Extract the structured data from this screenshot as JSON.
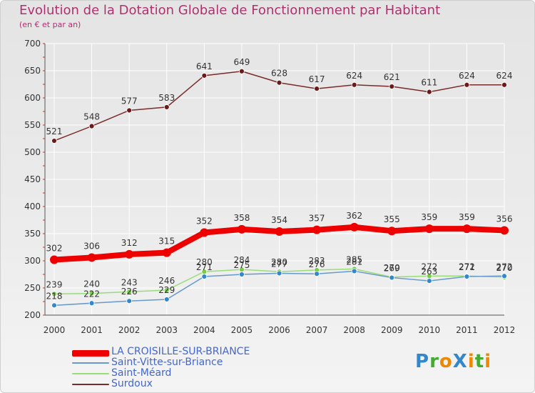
{
  "chart_data": {
    "type": "line",
    "title": "Evolution de la Dotation Globale de Fonctionnement par Habitant",
    "subtitle": "(en € et par an)",
    "x": [
      "2000",
      "2001",
      "2002",
      "2003",
      "2004",
      "2005",
      "2006",
      "2007",
      "2008",
      "2009",
      "2010",
      "2011",
      "2012"
    ],
    "ylim": [
      200,
      700
    ],
    "yticks": [
      200,
      250,
      300,
      350,
      400,
      450,
      500,
      550,
      600,
      650,
      700
    ],
    "grid": true,
    "legend_position": "bottom-left",
    "series": [
      {
        "name": "Surdoux",
        "color": "#7a2b2b",
        "marker": "#6b1a1a",
        "values": [
          521,
          548,
          577,
          583,
          641,
          649,
          628,
          617,
          624,
          621,
          611,
          624,
          624
        ]
      },
      {
        "name": "Saint-Méard",
        "color": "#99dd77",
        "marker": "#77cc44",
        "values": [
          239,
          240,
          243,
          246,
          280,
          284,
          280,
          283,
          285,
          270,
          272,
          272,
          270
        ]
      },
      {
        "name": "Saint-Vitte-sur-Briance",
        "color": "#6699cc",
        "marker": "#3388cc",
        "values": [
          218,
          222,
          226,
          229,
          271,
          275,
          277,
          276,
          281,
          269,
          263,
          271,
          272
        ]
      },
      {
        "name": "LA CROISILLE-SUR-BRIANCE",
        "color": "#ee0000",
        "marker": "#ee0000",
        "values": [
          302,
          306,
          312,
          315,
          352,
          358,
          354,
          357,
          362,
          355,
          359,
          359,
          356
        ]
      }
    ]
  },
  "legend": [
    {
      "label": "LA CROISILLE-SUR-BRIANCE",
      "color": "#ee0000"
    },
    {
      "label": "Saint-Vitte-sur-Briance",
      "color": "#6699cc"
    },
    {
      "label": "Saint-Méard",
      "color": "#99dd77"
    },
    {
      "label": "Surdoux",
      "color": "#7a2b2b"
    }
  ],
  "logo": {
    "text": "ProXiti",
    "letters": [
      "P",
      "r",
      "o",
      "X",
      "i",
      "t",
      "i"
    ],
    "colors": [
      "#3388cc",
      "#44aa33",
      "#ee8800",
      "#3388cc",
      "#ee8800",
      "#44aa33",
      "#ee8800"
    ]
  }
}
